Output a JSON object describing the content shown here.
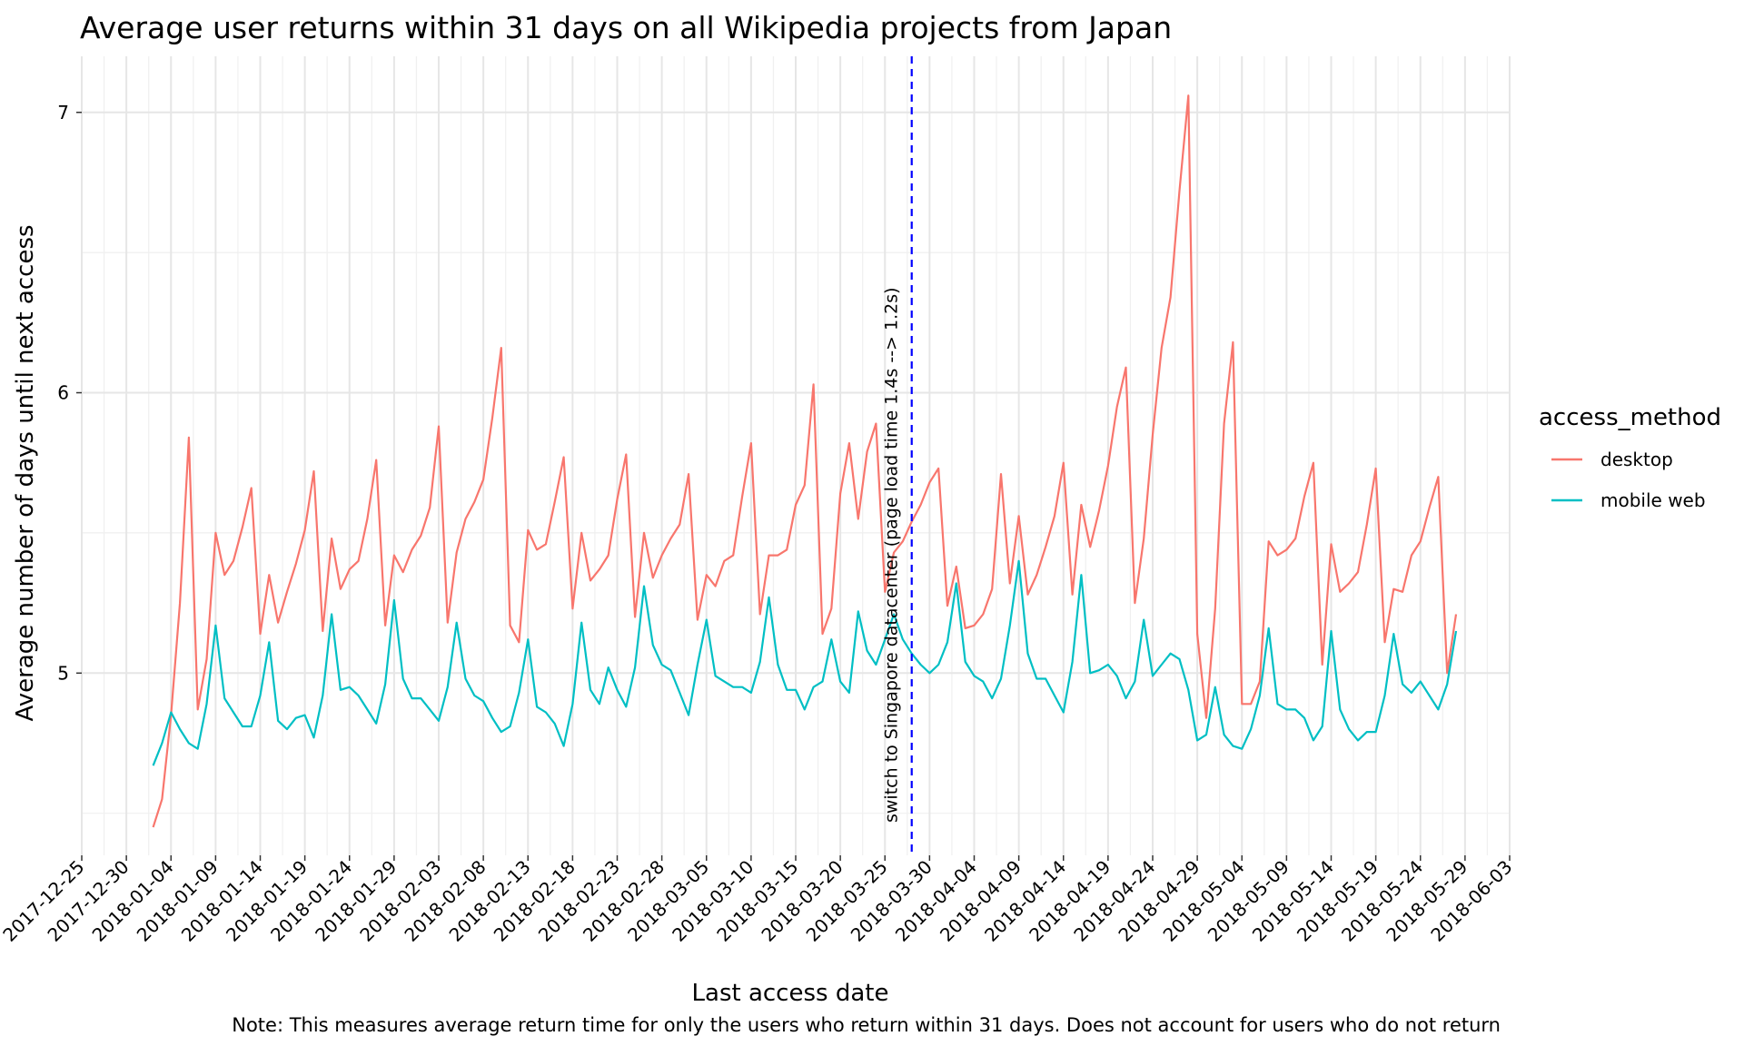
{
  "chart_data": {
    "type": "line",
    "title": "Average user returns within 31 days on all Wikipedia projects from Japan",
    "xlabel": "Last access date",
    "ylabel": "Average number of days until next access",
    "caption": "Note: This measures average return time for only the users who return within 31 days. Does not account for users who do not return",
    "ylim": [
      4.35,
      7.2
    ],
    "xlim": [
      "2017-12-25",
      "2018-06-03"
    ],
    "y_ticks": [
      5,
      6,
      7
    ],
    "x_ticks": [
      "2017-12-25",
      "2017-12-30",
      "2018-01-04",
      "2018-01-09",
      "2018-01-14",
      "2018-01-19",
      "2018-01-24",
      "2018-01-29",
      "2018-02-03",
      "2018-02-08",
      "2018-02-13",
      "2018-02-18",
      "2018-02-23",
      "2018-02-28",
      "2018-03-05",
      "2018-03-10",
      "2018-03-15",
      "2018-03-20",
      "2018-03-25",
      "2018-03-30",
      "2018-04-04",
      "2018-04-09",
      "2018-04-14",
      "2018-04-19",
      "2018-04-24",
      "2018-04-29",
      "2018-05-04",
      "2018-05-09",
      "2018-05-14",
      "2018-05-19",
      "2018-05-24",
      "2018-05-29",
      "2018-06-03"
    ],
    "grid": true,
    "legend": {
      "title": "access_method",
      "position": "right"
    },
    "start_date": "2018-01-02",
    "series": [
      {
        "name": "desktop",
        "color": "#F8766D",
        "values": [
          4.45,
          4.55,
          4.85,
          5.25,
          5.84,
          4.87,
          5.05,
          5.5,
          5.35,
          5.4,
          5.52,
          5.66,
          5.14,
          5.35,
          5.18,
          5.29,
          5.39,
          5.51,
          5.72,
          5.15,
          5.48,
          5.3,
          5.37,
          5.4,
          5.55,
          5.76,
          5.17,
          5.42,
          5.36,
          5.44,
          5.49,
          5.59,
          5.88,
          5.18,
          5.43,
          5.55,
          5.61,
          5.69,
          5.91,
          6.16,
          5.17,
          5.11,
          5.51,
          5.44,
          5.46,
          5.61,
          5.77,
          5.23,
          5.5,
          5.33,
          5.37,
          5.42,
          5.62,
          5.78,
          5.2,
          5.5,
          5.34,
          5.42,
          5.48,
          5.53,
          5.71,
          5.19,
          5.35,
          5.31,
          5.4,
          5.42,
          5.63,
          5.82,
          5.21,
          5.42,
          5.42,
          5.44,
          5.6,
          5.67,
          6.03,
          5.14,
          5.23,
          5.64,
          5.82,
          5.55,
          5.79,
          5.89,
          5.29,
          5.43,
          5.47,
          5.54,
          5.6,
          5.68,
          5.73,
          5.24,
          5.38,
          5.16,
          5.17,
          5.21,
          5.3,
          5.71,
          5.32,
          5.56,
          5.28,
          5.35,
          5.45,
          5.56,
          5.75,
          5.28,
          5.6,
          5.45,
          5.58,
          5.74,
          5.95,
          6.09,
          5.25,
          5.48,
          5.85,
          6.16,
          6.34,
          6.72,
          7.06,
          5.14,
          4.84,
          5.23,
          5.89,
          6.18,
          4.89,
          4.89,
          4.97,
          5.47,
          5.42,
          5.44,
          5.48,
          5.63,
          5.75,
          5.03,
          5.46,
          5.29,
          5.32,
          5.36,
          5.53,
          5.73,
          5.11,
          5.3,
          5.29,
          5.42,
          5.47,
          5.59,
          5.7,
          5.0,
          5.21
        ]
      },
      {
        "name": "mobile web",
        "color": "#00BFC4",
        "values": [
          4.67,
          4.75,
          4.86,
          4.8,
          4.75,
          4.73,
          4.89,
          5.17,
          4.91,
          4.86,
          4.81,
          4.81,
          4.92,
          5.11,
          4.83,
          4.8,
          4.84,
          4.85,
          4.77,
          4.92,
          5.21,
          4.94,
          4.95,
          4.92,
          4.87,
          4.82,
          4.96,
          5.26,
          4.98,
          4.91,
          4.91,
          4.87,
          4.83,
          4.95,
          5.18,
          4.98,
          4.92,
          4.9,
          4.84,
          4.79,
          4.81,
          4.93,
          5.12,
          4.88,
          4.86,
          4.82,
          4.74,
          4.89,
          5.18,
          4.94,
          4.89,
          5.02,
          4.94,
          4.88,
          5.02,
          5.31,
          5.1,
          5.03,
          5.01,
          4.93,
          4.85,
          5.03,
          5.19,
          4.99,
          4.97,
          4.95,
          4.95,
          4.93,
          5.04,
          5.27,
          5.03,
          4.94,
          4.94,
          4.87,
          4.95,
          4.97,
          5.12,
          4.97,
          4.93,
          5.22,
          5.08,
          5.03,
          5.12,
          5.21,
          5.12,
          5.07,
          5.03,
          5.0,
          5.03,
          5.11,
          5.32,
          5.04,
          4.99,
          4.97,
          4.91,
          4.98,
          5.17,
          5.4,
          5.07,
          4.98,
          4.98,
          4.92,
          4.86,
          5.04,
          5.35,
          5.0,
          5.01,
          5.03,
          4.99,
          4.91,
          4.97,
          5.19,
          4.99,
          5.03,
          5.07,
          5.05,
          4.94,
          4.76,
          4.78,
          4.95,
          4.78,
          4.74,
          4.73,
          4.8,
          4.92,
          5.16,
          4.89,
          4.87,
          4.87,
          4.84,
          4.76,
          4.81,
          5.15,
          4.87,
          4.8,
          4.76,
          4.79,
          4.79,
          4.92,
          5.14,
          4.96,
          4.93,
          4.97,
          4.92,
          4.87,
          4.96,
          5.15
        ]
      }
    ],
    "annotations": [
      {
        "type": "vline",
        "date": "2018-03-28",
        "color": "#0000FF",
        "style": "dashed",
        "text": "switch to Singapore datacenter (page load time 1.4s --> 1.2s)"
      }
    ]
  }
}
